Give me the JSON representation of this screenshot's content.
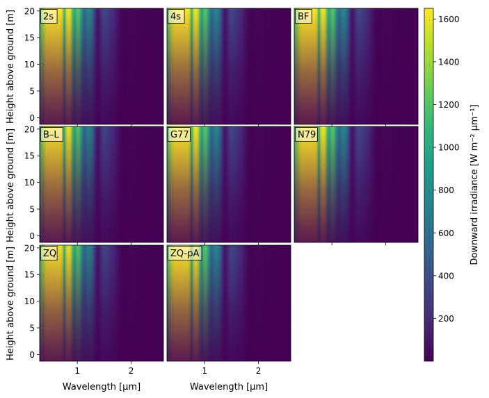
{
  "chart_data": {
    "type": "heatmap",
    "x_label": "Wavelength [μm]",
    "y_label": "Height above ground [m]",
    "x_range": [
      0.3,
      2.6
    ],
    "y_range": [
      -1.25,
      20.5
    ],
    "x_ticks": [
      1,
      2
    ],
    "y_ticks": [
      0,
      5,
      10,
      15,
      20
    ],
    "colorbar": {
      "label": "Downward irradiance [W m⁻² μm⁻¹]",
      "colormap": "viridis",
      "range": [
        0,
        1650
      ],
      "ticks": [
        200,
        400,
        600,
        800,
        1000,
        1200,
        1400,
        1600
      ]
    },
    "panels": [
      {
        "label": "2s",
        "peak": 1650
      },
      {
        "label": "4s",
        "peak": 1650
      },
      {
        "label": "BF",
        "peak": 1650
      },
      {
        "label": "B–L",
        "peak": 1600
      },
      {
        "label": "G77",
        "peak": 1650
      },
      {
        "label": "N79",
        "peak": 1650
      },
      {
        "label": "ZQ",
        "peak": 1600
      },
      {
        "label": "ZQ-pA",
        "peak": 1650
      }
    ],
    "absorption_bands_um": [
      0.76,
      0.94,
      1.13,
      1.38,
      1.87
    ],
    "grid": false
  }
}
